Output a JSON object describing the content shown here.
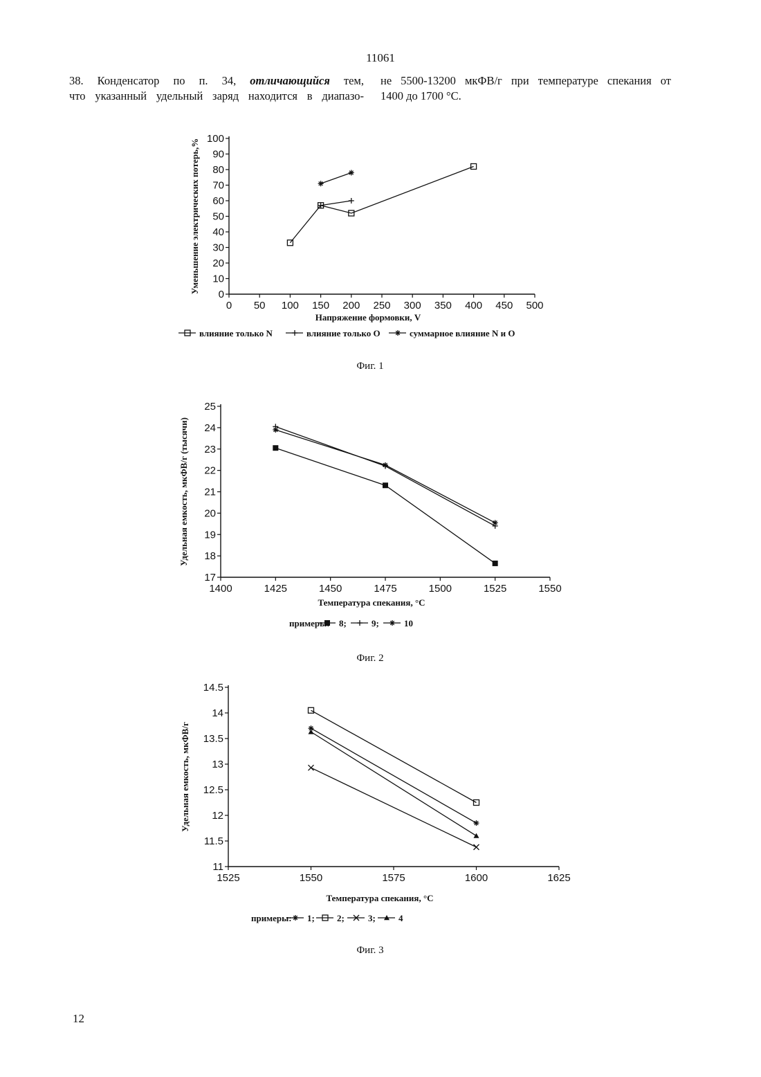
{
  "page": {
    "number_top": "11061",
    "number_bottom": "12"
  },
  "text": {
    "left_line1_a": "38. Конденсатор по п. 34, ",
    "left_line1_em": "отличающийся",
    "left_line1_b": " тем,",
    "left_line2": "что указанный удельный заряд находится в диапазо-",
    "right_line1": "не 5500-13200 мкФВ/г при температуре спекания от",
    "right_line2": "1400 до 1700 °С."
  },
  "chart_data": [
    {
      "type": "line",
      "caption": "Фиг. 1",
      "xlabel": "Напряжение формовки, V",
      "ylabel": "Уменьшение электрических потерь,%",
      "xlim": [
        0,
        500
      ],
      "ylim": [
        0,
        100
      ],
      "xticks": [
        0,
        50,
        100,
        150,
        200,
        250,
        300,
        350,
        400,
        450,
        500
      ],
      "yticks": [
        0,
        10,
        20,
        30,
        40,
        50,
        60,
        70,
        80,
        90,
        100
      ],
      "grid": false,
      "legend_position": "bottom",
      "series": [
        {
          "name": "влияние только N",
          "marker": "square",
          "x": [
            100,
            150,
            200,
            400
          ],
          "y": [
            33,
            57,
            52,
            82
          ]
        },
        {
          "name": "влияние только O",
          "marker": "plus",
          "x": [
            150,
            200
          ],
          "y": [
            57,
            60
          ]
        },
        {
          "name": "суммарное влияние N и O",
          "marker": "star",
          "x": [
            150,
            200
          ],
          "y": [
            71,
            78
          ]
        }
      ]
    },
    {
      "type": "line",
      "caption": "Фиг. 2",
      "xlabel": "Температура спекания, °С",
      "ylabel": "Удельная емкость, мкФВ/г (тысячи)",
      "xlim": [
        1400,
        1550
      ],
      "ylim": [
        17,
        25
      ],
      "xticks": [
        1400,
        1425,
        1450,
        1475,
        1500,
        1525,
        1550
      ],
      "yticks": [
        17,
        18,
        19,
        20,
        21,
        22,
        23,
        24,
        25
      ],
      "grid": false,
      "legend_position": "bottom",
      "legend_prefix": "примеры:",
      "series": [
        {
          "name": "8",
          "marker": "filled-square",
          "x": [
            1425,
            1475,
            1525
          ],
          "y": [
            23.05,
            21.3,
            17.65
          ]
        },
        {
          "name": "9",
          "marker": "plus",
          "x": [
            1425,
            1475,
            1525
          ],
          "y": [
            24.05,
            22.2,
            19.4
          ]
        },
        {
          "name": "10",
          "marker": "star",
          "x": [
            1425,
            1475,
            1525
          ],
          "y": [
            23.9,
            22.25,
            19.55
          ]
        }
      ]
    },
    {
      "type": "line",
      "caption": "Фиг. 3",
      "xlabel": "Температура спекания, °С",
      "ylabel": "Удельная емкость, мкФВ/г",
      "xlim": [
        1525,
        1625
      ],
      "ylim": [
        11,
        14.5
      ],
      "xticks": [
        1525,
        1550,
        1575,
        1600,
        1625
      ],
      "yticks": [
        11,
        11.5,
        12,
        12.5,
        13,
        13.5,
        14,
        14.5
      ],
      "grid": false,
      "legend_position": "bottom",
      "legend_prefix": "примеры:",
      "series": [
        {
          "name": "1",
          "marker": "star",
          "x": [
            1550,
            1600
          ],
          "y": [
            13.7,
            11.85
          ]
        },
        {
          "name": "2",
          "marker": "square",
          "x": [
            1550,
            1600
          ],
          "y": [
            14.05,
            12.25
          ]
        },
        {
          "name": "3",
          "marker": "x",
          "x": [
            1550,
            1600
          ],
          "y": [
            12.93,
            11.38
          ]
        },
        {
          "name": "4",
          "marker": "triangle",
          "x": [
            1550,
            1600
          ],
          "y": [
            13.63,
            11.6
          ]
        }
      ]
    }
  ]
}
